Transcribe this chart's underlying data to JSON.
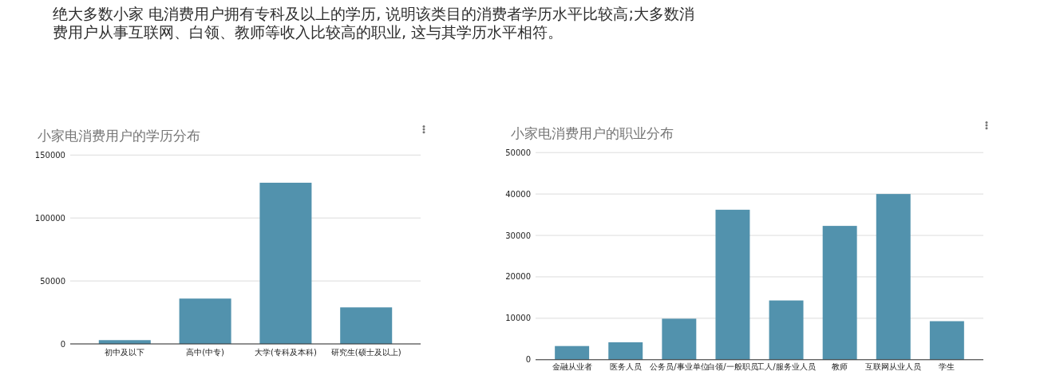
{
  "chart_data": [
    {
      "type": "other",
      "title": "绝大多数小家 电消费用户拥有专科及以上的学历, 说明该类目的消费者学历水平比较高;大多数消费用户从事互联网、白领、教师等收入比较高的职业, 这与其学历水平相符。"
    },
    {
      "type": "bar",
      "title": "小家电消费用户的学历分布",
      "categories": [
        "初中及以下",
        "高中(中专)",
        "大学(专科及本科)",
        "研究生(硕士及以上)"
      ],
      "values": [
        3000,
        36000,
        128000,
        29000
      ],
      "color": "#5292ad",
      "ylim": [
        0,
        150000
      ],
      "yticks": [
        0,
        50000,
        100000,
        150000
      ],
      "grid": "y"
    },
    {
      "type": "bar",
      "title": "小家电消费用户的职业分布",
      "categories": [
        "金融从业者",
        "医务人员",
        "公务员/事业单位",
        "白领/一般职员",
        "工人/服务业人员",
        "教师",
        "互联网从业人员",
        "学生"
      ],
      "values": [
        3300,
        4200,
        9900,
        36200,
        14300,
        32300,
        40000,
        9300
      ],
      "color": "#5292ad",
      "ylim": [
        0,
        50000
      ],
      "yticks": [
        0,
        10000,
        20000,
        30000,
        40000,
        50000
      ],
      "grid": "y"
    }
  ]
}
